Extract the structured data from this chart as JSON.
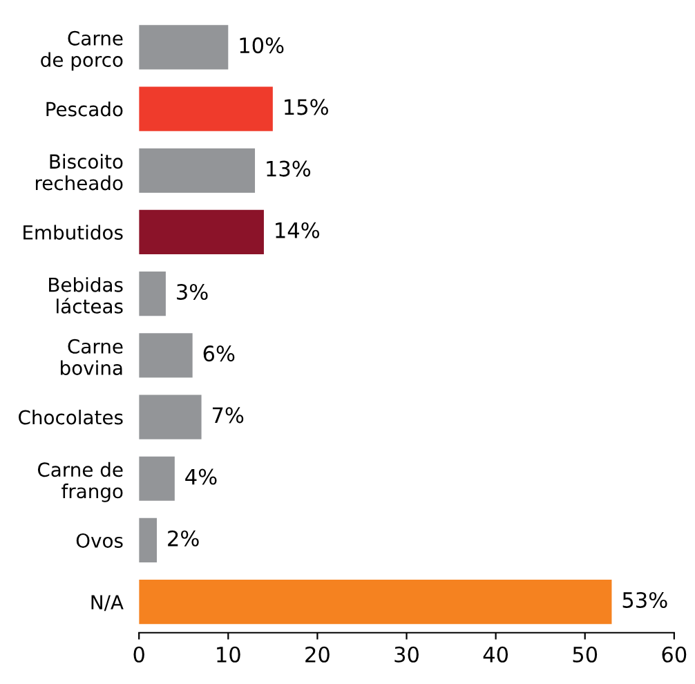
{
  "chart_data": {
    "type": "bar",
    "orientation": "horizontal",
    "categories": [
      "Carne\nde porco",
      "Pescado",
      "Biscoito\nrecheado",
      "Embutidos",
      "Bebidas\nlácteas",
      "Carne\nbovina",
      "Chocolates",
      "Carne de\nfrango",
      "Ovos",
      "N/A"
    ],
    "values": [
      10,
      15,
      13,
      14,
      3,
      6,
      7,
      4,
      2,
      53
    ],
    "colors": [
      "#939598",
      "#ef3b2c",
      "#939598",
      "#8b1329",
      "#939598",
      "#939598",
      "#939598",
      "#939598",
      "#939598",
      "#f58220"
    ],
    "value_labels": [
      "10%",
      "15%",
      "13%",
      "14%",
      "3%",
      "6%",
      "7%",
      "4%",
      "2%",
      "53%"
    ],
    "xlim": [
      0,
      60
    ],
    "xticks": [
      0,
      10,
      20,
      30,
      40,
      50,
      60
    ],
    "grid": false,
    "legend": false
  }
}
